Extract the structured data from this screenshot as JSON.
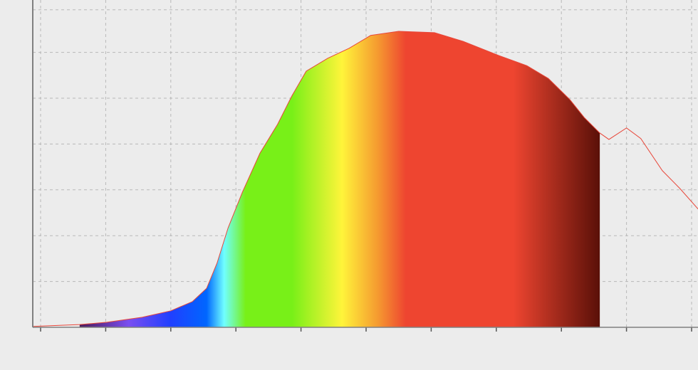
{
  "chart_data": {
    "type": "area",
    "title": "",
    "xlabel": "",
    "ylabel": "",
    "xlim": [
      -0.12,
      10.1
    ],
    "ylim": [
      0,
      7.15
    ],
    "x_ticks": [
      0,
      1,
      2,
      3,
      4,
      5,
      6,
      7,
      8,
      9,
      10
    ],
    "y_grid": [
      1,
      2,
      3,
      4,
      5,
      6,
      6.93
    ],
    "grid": true,
    "legend": "none",
    "line_color": "#e8473a",
    "background": "#ececec",
    "grid_color": "#b8b8b8",
    "axis_color": "#808080",
    "series": [
      {
        "x": [
          -0.12,
          0.6,
          1.02,
          1.56,
          2.0,
          2.33,
          2.55,
          2.71,
          2.88,
          3.1,
          3.37,
          3.64,
          3.86,
          4.08,
          4.41,
          4.74,
          5.07,
          5.5,
          6.05,
          6.49,
          7.04,
          7.47,
          7.8,
          8.13,
          8.35,
          8.59,
          8.73,
          9.0,
          9.22,
          9.55,
          9.82,
          10.1
        ],
        "y": [
          0.02,
          0.06,
          0.11,
          0.22,
          0.36,
          0.56,
          0.85,
          1.4,
          2.17,
          2.95,
          3.8,
          4.43,
          5.05,
          5.59,
          5.87,
          6.09,
          6.37,
          6.46,
          6.43,
          6.24,
          5.93,
          5.71,
          5.43,
          4.97,
          4.58,
          4.24,
          4.1,
          4.35,
          4.12,
          3.42,
          3.03,
          2.58
        ]
      }
    ],
    "fill_range": [
      0.6,
      8.59
    ],
    "fill_gradient": [
      {
        "x": 0.6,
        "color": "#4a1a5a"
      },
      {
        "x": 1.35,
        "color": "#7a4ef0"
      },
      {
        "x": 2.0,
        "color": "#2040ff"
      },
      {
        "x": 2.55,
        "color": "#0066ff"
      },
      {
        "x": 2.82,
        "color": "#70ffff"
      },
      {
        "x": 3.15,
        "color": "#78f018"
      },
      {
        "x": 3.86,
        "color": "#78f018"
      },
      {
        "x": 4.63,
        "color": "#fff43a"
      },
      {
        "x": 5.18,
        "color": "#f59a30"
      },
      {
        "x": 5.61,
        "color": "#ee4530"
      },
      {
        "x": 7.26,
        "color": "#ee4530"
      },
      {
        "x": 8.59,
        "color": "#5a1008"
      }
    ]
  }
}
